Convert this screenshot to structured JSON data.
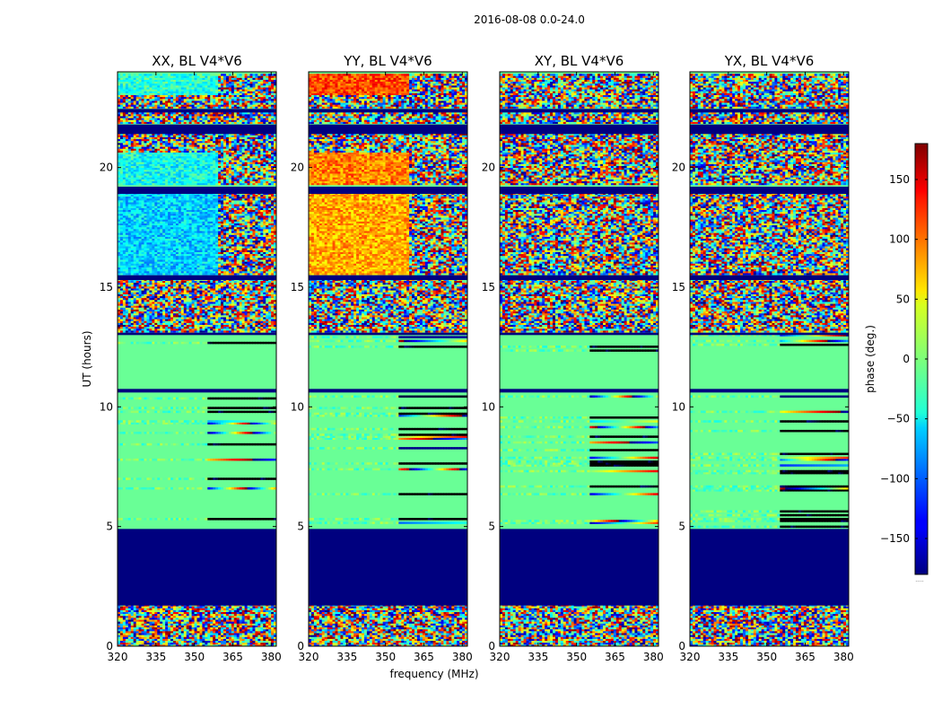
{
  "chart_data": {
    "type": "heatmap",
    "suptitle": "2016-08-08 0.0-24.0",
    "xlabel": "frequency (MHz)",
    "ylabel": "UT (hours)",
    "xlim": [
      320,
      382
    ],
    "ylim": [
      0,
      24
    ],
    "xticks": [
      320,
      335,
      350,
      365,
      380
    ],
    "yticks": [
      0,
      5,
      10,
      15,
      20
    ],
    "value_description": "visibility phase per frequency channel and time (deg.)",
    "panels": [
      {
        "title": "XX, BL V4*V6",
        "polarization": "XX",
        "quiet_phase": -8,
        "bands": [
          {
            "t0": 23.0,
            "t1": 24.0,
            "pattern": "smooth",
            "phase": -30
          },
          {
            "t0": 19.0,
            "t1": 20.6,
            "pattern": "smooth",
            "phase": -40
          },
          {
            "t0": 15.5,
            "t1": 18.9,
            "pattern": "smooth",
            "phase": -60
          }
        ]
      },
      {
        "title": "YY, BL V4*V6",
        "polarization": "YY",
        "quiet_phase": -8,
        "bands": [
          {
            "t0": 23.0,
            "t1": 24.0,
            "pattern": "smooth",
            "phase": 110
          },
          {
            "t0": 19.0,
            "t1": 20.6,
            "pattern": "smooth",
            "phase": 90
          },
          {
            "t0": 15.5,
            "t1": 18.9,
            "pattern": "smooth",
            "phase": 75
          }
        ]
      },
      {
        "title": "XY, BL V4*V6",
        "polarization": "XY",
        "quiet_phase": -8,
        "bands": []
      },
      {
        "title": "YX, BL V4*V6",
        "polarization": "YX",
        "quiet_phase": -8,
        "bands": []
      }
    ],
    "flagged_intervals_hours": [
      [
        1.7,
        4.9
      ],
      [
        15.3,
        15.5
      ],
      [
        13.0,
        13.1
      ],
      [
        10.6,
        10.75
      ],
      [
        22.3,
        22.45
      ],
      [
        21.4,
        21.8
      ],
      [
        18.9,
        19.2
      ]
    ],
    "noisy_intervals_hours": [
      [
        0.0,
        1.7
      ],
      [
        13.1,
        15.3
      ],
      [
        15.5,
        23.9
      ]
    ],
    "quiet_interval_hours": [
      10.75,
      12.2
    ],
    "colorbar": {
      "label": "phase (deg.)",
      "vmin": -180,
      "vmax": 180,
      "ticks": [
        -150,
        -100,
        -50,
        0,
        50,
        100,
        150
      ],
      "tick_labels": [
        "−150",
        "−100",
        "−50",
        "0",
        "50",
        "100",
        "150"
      ],
      "colormap": "jet",
      "footer": "....."
    }
  }
}
